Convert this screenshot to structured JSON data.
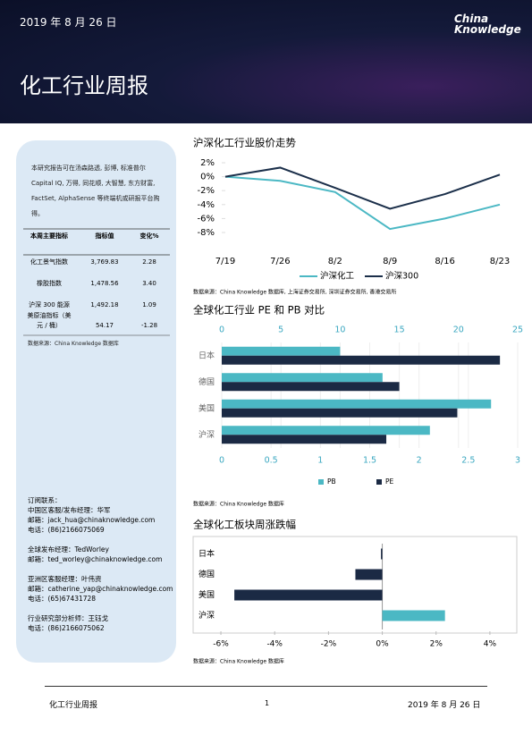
{
  "header": {
    "date": "2019 年 8 月 26 日",
    "logo": [
      "China",
      "Knowledge"
    ],
    "title": "化工行业周报"
  },
  "sidebar": {
    "intro": "本研究报告可在汤森路透, 彭博, 标准普尔 Capital IQ, 万得, 同花顺, 大智慧, 东方财富, FactSet, AlphaSense 等终端机或研报平台购得。",
    "table": {
      "header": [
        "本周主要指标",
        "指标值",
        "变化%"
      ],
      "rows": [
        [
          "化工景气指数",
          "3,769.83",
          "2.28"
        ],
        [
          "橡胶指数",
          "1,478.56",
          "3.40"
        ],
        [
          "沪深 300 能源",
          "1,492.18",
          "1.09"
        ],
        [
          "美原油指标（美元 / 桶）",
          "54.17",
          "-1.28"
        ]
      ]
    },
    "source": "数据来源：China Knowledge 数据库",
    "contacts": [
      [
        "订阅联系：",
        "中国区客服/发布经理：华军",
        "邮箱：jack_hua@chinaknowledge.com",
        "电话：(86)2166075069"
      ],
      [
        "全球发布经理：TedWorley",
        "邮箱：ted_worley@chinaknowledge.com"
      ],
      [
        "亚洲区客服经理：叶伟资",
        "邮箱：catherine_yap@chinaknowledge.com",
        "电话：(65)67431728"
      ],
      [
        "行业研究部分析师：王钰戈",
        "电话：(86)2166075062"
      ]
    ]
  },
  "chart_data": [
    {
      "type": "line",
      "title": "沪深化工行业股价走势",
      "categories": [
        "7/19",
        "7/26",
        "8/2",
        "8/9",
        "8/16",
        "8/23"
      ],
      "series": [
        {
          "name": "沪深化工",
          "color": "#4bb8c4",
          "values": [
            0,
            -0.6,
            -2.2,
            -7.5,
            -6.0,
            -4.0
          ]
        },
        {
          "name": "沪深300",
          "color": "#1b2f4a",
          "values": [
            0,
            1.3,
            -1.6,
            -4.6,
            -2.5,
            0.3
          ]
        }
      ],
      "ylim": [
        -8,
        2
      ],
      "yticks": [
        {
          "value": -8,
          "label": "-8%"
        },
        {
          "value": -6,
          "label": "-6%"
        },
        {
          "value": -4,
          "label": "-4%"
        },
        {
          "value": -2,
          "label": "-2%"
        },
        {
          "value": 0,
          "label": "0%"
        },
        {
          "value": 2,
          "label": "2%"
        }
      ],
      "source": "数据来源：China Knowledge 数据库, 上海证券交易所, 深圳证券交易所, 香港交易所"
    },
    {
      "type": "hbar",
      "title": "全球化工行业 PE 和 PB 对比",
      "categories": [
        "日本",
        "德国",
        "美国",
        "沪深"
      ],
      "series": [
        {
          "name": "PB",
          "color": "#4bb8c4",
          "axis": "x",
          "values": [
            1.2,
            1.63,
            2.73,
            2.11
          ]
        },
        {
          "name": "PE",
          "color": "#1b2a44",
          "axis": "x2",
          "values": [
            23.5,
            15.0,
            19.9,
            13.9
          ]
        }
      ],
      "xlim": [
        0,
        3
      ],
      "xticks": [
        0,
        0.5,
        1,
        1.5,
        2,
        2.5,
        3
      ],
      "x2lim": [
        0,
        25
      ],
      "x2ticks": [
        0,
        5,
        10,
        15,
        20,
        25
      ],
      "source": "数据来源：China Knowledge 数据库"
    },
    {
      "type": "hbar",
      "title": "全球化工板块周涨跌幅",
      "categories": [
        "日本",
        "德国",
        "美国",
        "沪深"
      ],
      "values": [
        -0.05,
        -1.0,
        -5.5,
        2.33
      ],
      "colors": [
        "#1b2a44",
        "#1b2a44",
        "#1b2a44",
        "#4bb8c4"
      ],
      "xlim": [
        -6.5,
        5
      ],
      "xticks": [
        {
          "value": -6,
          "label": "-6%"
        },
        {
          "value": -4,
          "label": "-4%"
        },
        {
          "value": -2,
          "label": "-2%"
        },
        {
          "value": 0,
          "label": "0%"
        },
        {
          "value": 2,
          "label": "2%"
        },
        {
          "value": 4,
          "label": "4%"
        }
      ],
      "source": "数据来源：China Knowledge 数据库"
    }
  ],
  "footer": {
    "left": "化工行业周报",
    "page": "1",
    "date": "2019 年 8 月 26 日"
  }
}
